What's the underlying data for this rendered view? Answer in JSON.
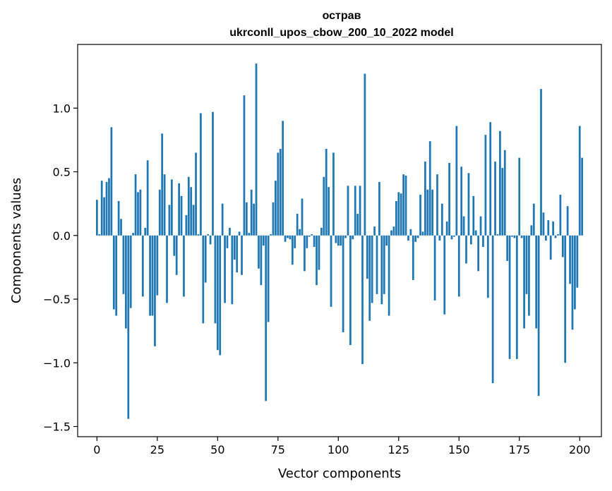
{
  "chart_data": {
    "type": "bar",
    "title": "острав",
    "subtitle": "ukrconll_upos_cbow_200_10_2022 model",
    "xlabel": "Vector components",
    "ylabel": "Components values",
    "xlim": [
      -8,
      209
    ],
    "ylim": [
      -1.58,
      1.5
    ],
    "xticks": [
      0,
      25,
      50,
      75,
      100,
      125,
      150,
      175,
      200
    ],
    "yticks": [
      -1.5,
      -1.0,
      -0.5,
      0.0,
      0.5,
      1.0
    ],
    "ytick_labels": [
      "−1.5",
      "−1.0",
      "−0.5",
      "0.0",
      "0.5",
      "1.0"
    ],
    "grid": false,
    "legend": "none",
    "bar_color": "#1f77b4",
    "values": [
      0.28,
      0.01,
      0.43,
      0.3,
      0.42,
      0.45,
      0.85,
      -0.58,
      -0.63,
      0.27,
      0.13,
      -0.46,
      -0.73,
      -1.44,
      -0.57,
      0.02,
      0.48,
      0.34,
      0.36,
      -0.48,
      0.06,
      0.59,
      -0.63,
      -0.63,
      -0.87,
      -0.47,
      0.36,
      0.8,
      0.48,
      -0.53,
      0.24,
      0.44,
      -0.16,
      -0.31,
      0.41,
      0.31,
      -0.48,
      0.16,
      0.46,
      0.38,
      0.24,
      0.65,
      0.01,
      0.96,
      -0.69,
      -0.37,
      0.01,
      -0.07,
      0.97,
      -0.69,
      -0.9,
      -0.94,
      0.25,
      -0.53,
      -0.1,
      0.06,
      -0.54,
      -0.19,
      -0.29,
      0.03,
      -0.31,
      1.1,
      0.26,
      0.02,
      0.36,
      0.25,
      1.35,
      -0.26,
      -0.39,
      -0.08,
      -1.3,
      -0.68,
      0.01,
      0.26,
      0.43,
      0.65,
      0.68,
      0.9,
      -0.05,
      -0.02,
      -0.03,
      -0.23,
      -0.1,
      0.17,
      0.05,
      0.29,
      -0.28,
      -0.1,
      -0.01,
      0.01,
      -0.09,
      -0.39,
      -0.27,
      0.06,
      0.46,
      0.68,
      0.38,
      -0.56,
      0.65,
      -0.06,
      -0.08,
      -0.08,
      -0.76,
      -0.02,
      0.39,
      -0.86,
      -0.03,
      0.39,
      0.17,
      0.39,
      -1.01,
      1.27,
      -0.34,
      -0.67,
      -0.53,
      0.07,
      -0.46,
      0.42,
      -0.54,
      -0.46,
      -0.08,
      -0.63,
      0.04,
      0.07,
      0.27,
      0.34,
      0.33,
      0.48,
      0.47,
      -0.04,
      0.05,
      -0.35,
      -0.05,
      -0.02,
      0.32,
      0.03,
      0.58,
      0.36,
      0.74,
      0.36,
      -0.51,
      0.48,
      -0.04,
      0.25,
      -0.62,
      0.11,
      0.57,
      -0.03,
      -0.01,
      0.86,
      -0.48,
      0.54,
      0.15,
      -0.22,
      0.49,
      -0.07,
      0.31,
      0.04,
      -0.28,
      0.15,
      -0.09,
      0.79,
      -0.49,
      0.89,
      -1.16,
      0.58,
      0.01,
      0.82,
      0.53,
      0.67,
      -0.2,
      -0.97,
      -0.01,
      -0.02,
      -0.97,
      0.61,
      -0.02,
      -0.73,
      -0.46,
      -0.63,
      0.08,
      0.25,
      -0.73,
      -1.26,
      1.15,
      0.18,
      -0.04,
      0.12,
      -0.19,
      0.11,
      -0.02,
      0.01,
      0.32,
      -0.17,
      -1.0,
      0.23,
      -0.38,
      -0.74,
      -0.58,
      -0.41,
      0.86,
      0.61
    ]
  }
}
